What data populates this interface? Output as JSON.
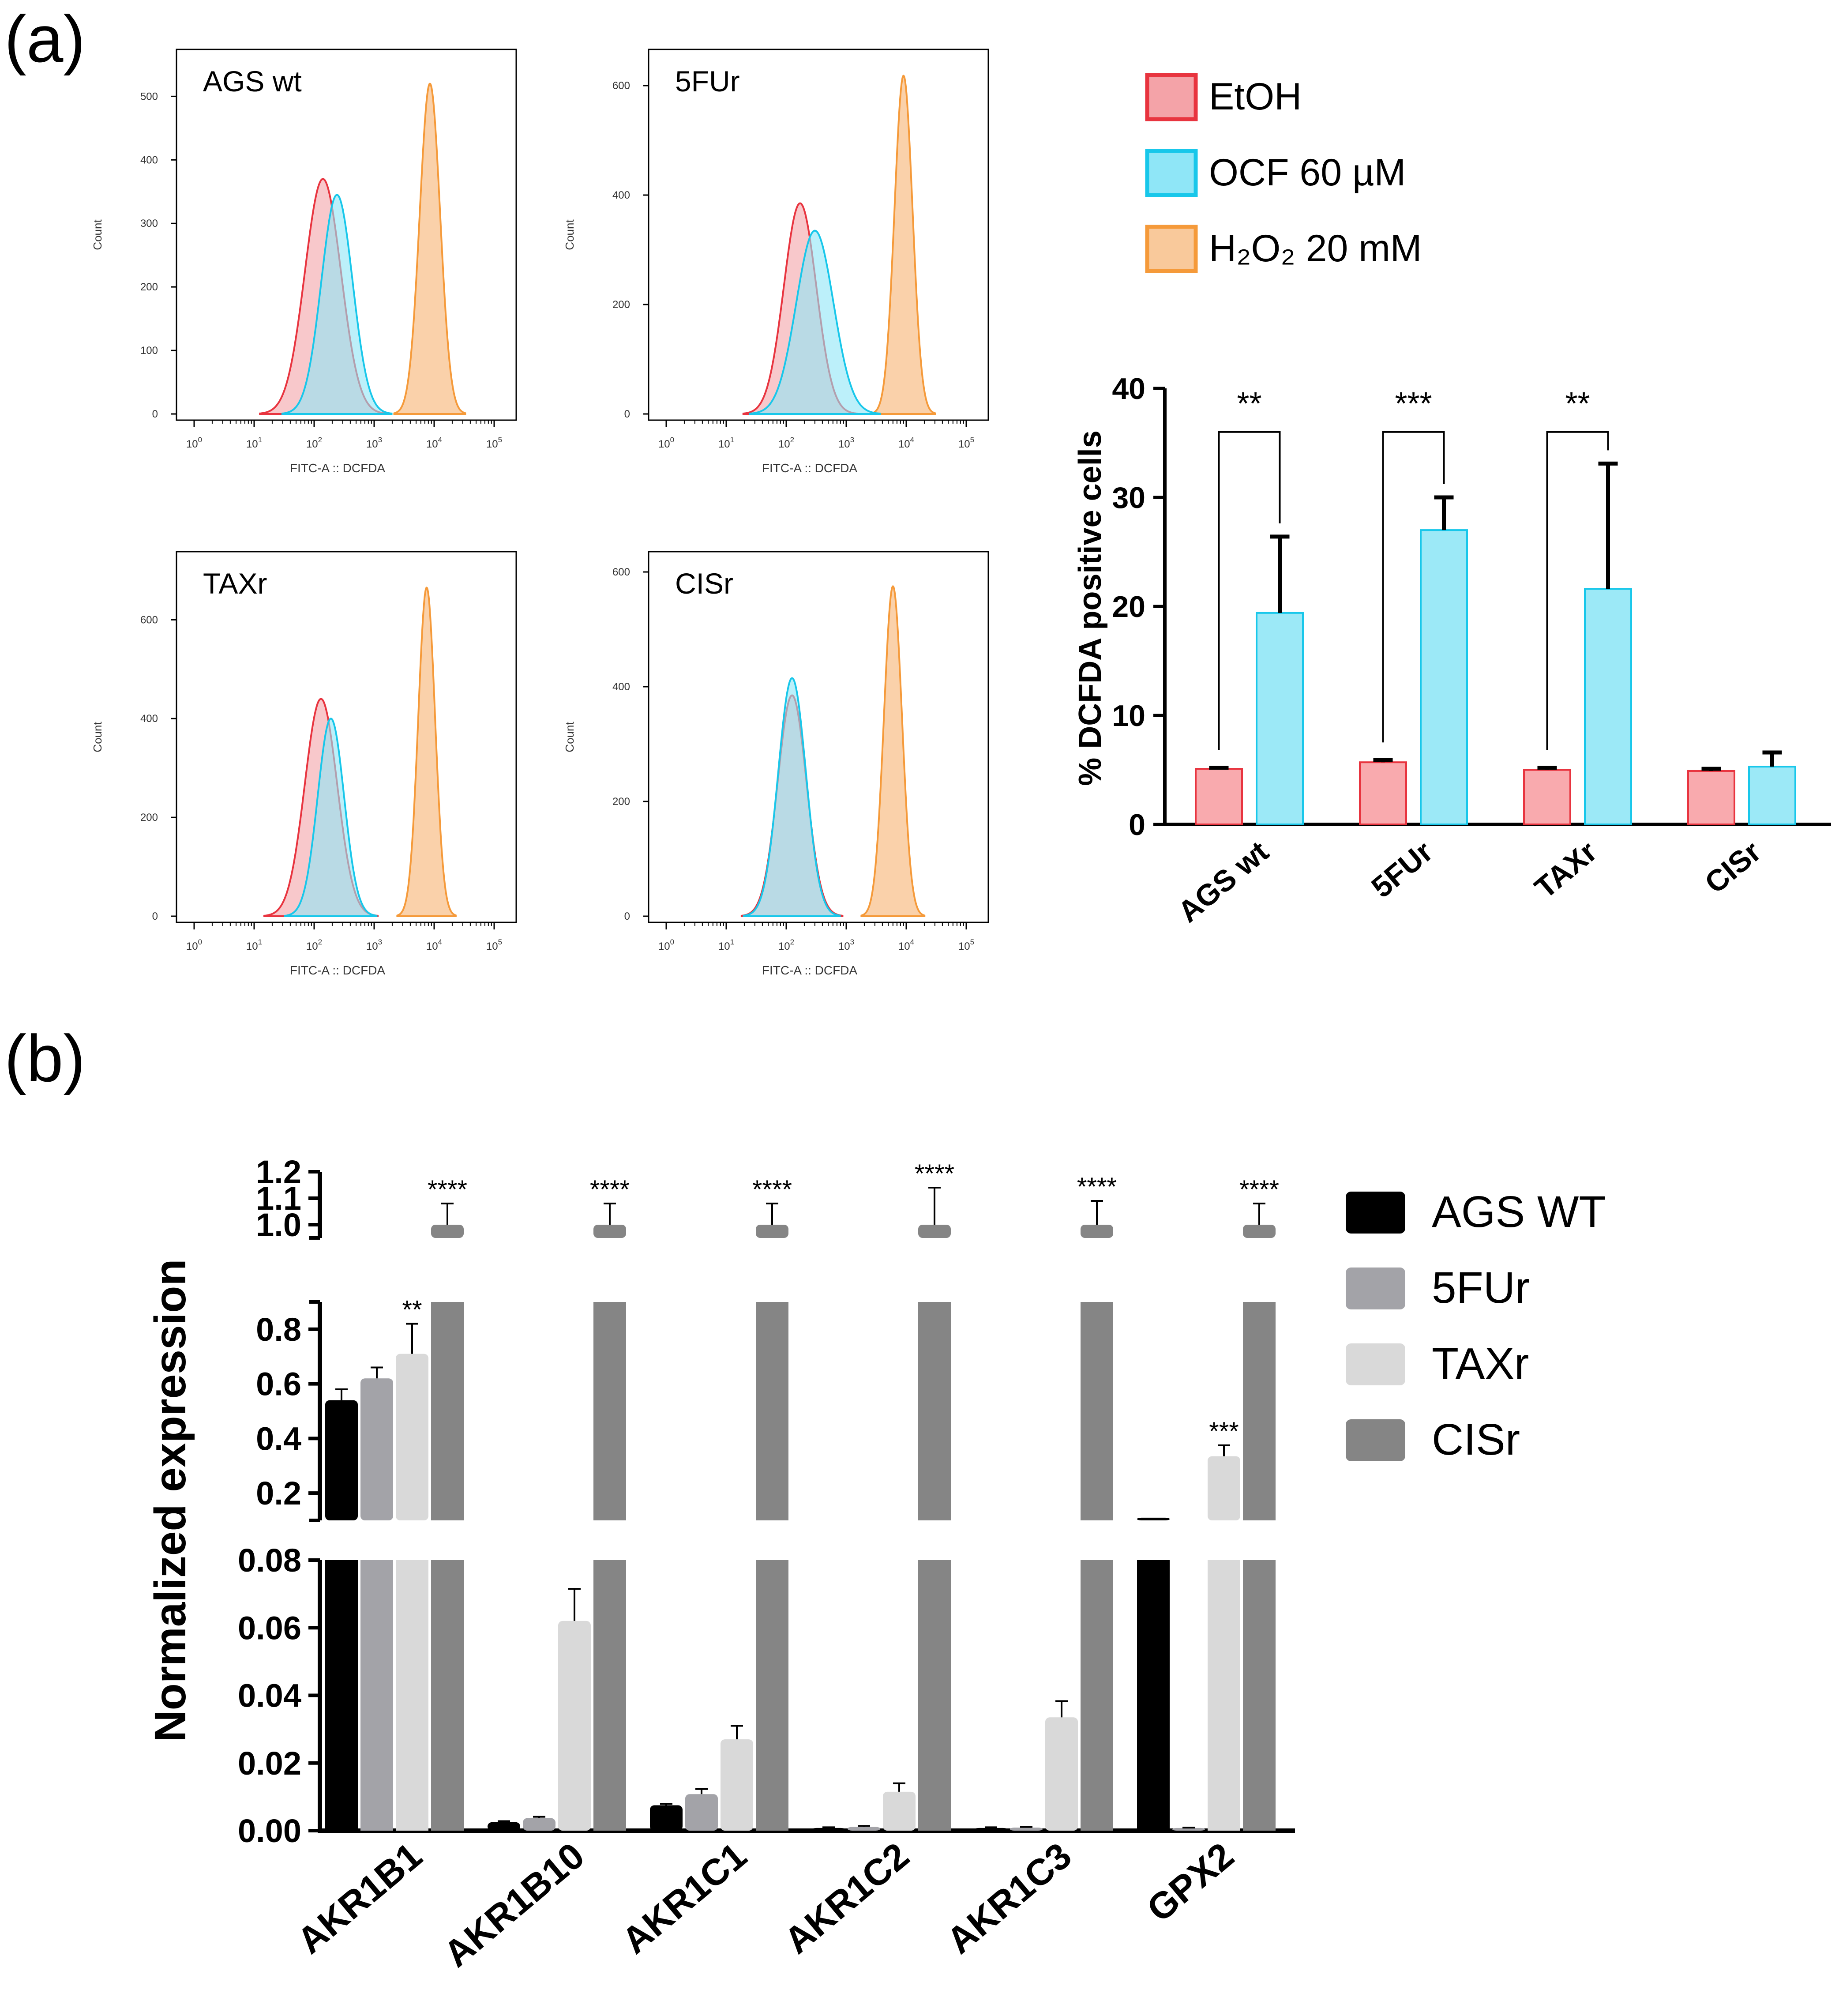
{
  "panel_labels": {
    "a": "(a)",
    "b": "(b)"
  },
  "histogram_axis": {
    "xlabel": "FITC-A :: DCFDA",
    "ylabel": "Count",
    "xticks": [
      "10^0",
      "10^1",
      "10^2",
      "10^3",
      "10^4",
      "10^5"
    ]
  },
  "legend_a": [
    {
      "label": "EtOH",
      "color": "#f4a3a8",
      "edge": "#e8343f"
    },
    {
      "label": "OCF 60 µM",
      "color": "#8fe6f7",
      "edge": "#18c7ea"
    },
    {
      "label": "H₂O₂ 20 mM",
      "color": "#f9c99b",
      "edge": "#f59a3a"
    }
  ],
  "legend_b": [
    {
      "label": "AGS WT",
      "color": "#000000"
    },
    {
      "label": "5FUr",
      "color": "#a3a3a8"
    },
    {
      "label": "TAXr",
      "color": "#d9d9d9"
    },
    {
      "label": "CISr",
      "color": "#858585"
    }
  ],
  "chart_data": [
    {
      "type": "histogram",
      "title": "AGS wt",
      "xlabel": "FITC-A :: DCFDA",
      "ylabel": "Count",
      "xscale": "log",
      "xlim": [
        1,
        100000
      ],
      "ylim": [
        0,
        560
      ],
      "yticks": [
        0,
        100,
        200,
        300,
        400,
        500
      ],
      "series": [
        {
          "name": "EtOH",
          "peak_x": 140,
          "peak_count": 370,
          "spread_decades": 0.3
        },
        {
          "name": "OCF 60 µM",
          "peak_x": 240,
          "peak_count": 345,
          "spread_decades": 0.26
        },
        {
          "name": "H₂O₂ 20 mM",
          "peak_x": 8500,
          "peak_count": 520,
          "spread_decades": 0.17
        }
      ]
    },
    {
      "type": "histogram",
      "title": "5FUr",
      "xlabel": "FITC-A :: DCFDA",
      "ylabel": "Count",
      "xscale": "log",
      "xlim": [
        1,
        100000
      ],
      "ylim": [
        0,
        650
      ],
      "yticks": [
        0,
        200,
        400,
        600
      ],
      "series": [
        {
          "name": "EtOH",
          "peak_x": 170,
          "peak_count": 385,
          "spread_decades": 0.27
        },
        {
          "name": "OCF 60 µM",
          "peak_x": 300,
          "peak_count": 335,
          "spread_decades": 0.31
        },
        {
          "name": "H₂O₂ 20 mM",
          "peak_x": 9000,
          "peak_count": 618,
          "spread_decades": 0.15
        }
      ]
    },
    {
      "type": "histogram",
      "title": "TAXr",
      "xlabel": "FITC-A :: DCFDA",
      "ylabel": "Count",
      "xscale": "log",
      "xlim": [
        1,
        100000
      ],
      "ylim": [
        0,
        720
      ],
      "yticks": [
        0,
        200,
        400,
        600
      ],
      "series": [
        {
          "name": "EtOH",
          "peak_x": 130,
          "peak_count": 440,
          "spread_decades": 0.27
        },
        {
          "name": "OCF 60 µM",
          "peak_x": 190,
          "peak_count": 400,
          "spread_decades": 0.22
        },
        {
          "name": "H₂O₂ 20 mM",
          "peak_x": 7500,
          "peak_count": 665,
          "spread_decades": 0.14
        }
      ]
    },
    {
      "type": "histogram",
      "title": "CISr",
      "xlabel": "FITC-A :: DCFDA",
      "ylabel": "Count",
      "xscale": "log",
      "xlim": [
        1,
        100000
      ],
      "ylim": [
        0,
        620
      ],
      "yticks": [
        0,
        200,
        400,
        600
      ],
      "series": [
        {
          "name": "EtOH",
          "peak_x": 125,
          "peak_count": 385,
          "spread_decades": 0.24
        },
        {
          "name": "OCF 60 µM",
          "peak_x": 125,
          "peak_count": 415,
          "spread_decades": 0.23
        },
        {
          "name": "H₂O₂ 20 mM",
          "peak_x": 6000,
          "peak_count": 575,
          "spread_decades": 0.15
        }
      ]
    },
    {
      "type": "bar",
      "title": "",
      "xlabel": "",
      "ylabel": "% DCFDA positive cells",
      "ylim": [
        0,
        40
      ],
      "yticks": [
        0,
        10,
        20,
        30,
        40
      ],
      "categories": [
        "AGS wt",
        "5FUr",
        "TAXr",
        "CISr"
      ],
      "series": [
        {
          "name": "EtOH",
          "values": [
            5.1,
            5.7,
            5.0,
            4.9
          ],
          "errors": [
            0.1,
            0.2,
            0.2,
            0.2
          ]
        },
        {
          "name": "OCF 60 µM",
          "values": [
            19.4,
            27.0,
            21.6,
            5.3
          ],
          "errors": [
            7.0,
            3.0,
            11.5,
            1.3
          ]
        }
      ],
      "significance": [
        "**",
        "***",
        "**",
        ""
      ]
    },
    {
      "type": "bar",
      "title": "",
      "xlabel": "",
      "ylabel": "Normalized expression",
      "broken_axis": true,
      "segments": [
        {
          "range": [
            0.0,
            0.08
          ],
          "ticks": [
            "0.00",
            "0.02",
            "0.04",
            "0.06",
            "0.08"
          ]
        },
        {
          "range": [
            0.1,
            0.9
          ],
          "ticks": [
            "0.2",
            "0.4",
            "0.6",
            "0.8"
          ]
        },
        {
          "range": [
            0.95,
            1.2
          ],
          "ticks": [
            "1.0",
            "1.1",
            "1.2"
          ]
        }
      ],
      "categories": [
        "AKR1B1",
        "AKR1B10",
        "AKR1C1",
        "AKR1C2",
        "AKR1C3",
        "GPX2"
      ],
      "series": [
        {
          "name": "AGS WT",
          "values": [
            0.54,
            0.0025,
            0.0075,
            0.0008,
            0.0008,
            0.11
          ],
          "errors": [
            0.04,
            0.0003,
            0.0004,
            0.0002,
            0.0002,
            0.0
          ]
        },
        {
          "name": "5FUr",
          "values": [
            0.62,
            0.0037,
            0.0108,
            0.0011,
            0.0009,
            0.0008
          ],
          "errors": [
            0.04,
            0.0004,
            0.0015,
            0.0003,
            0.0002,
            0.0001
          ]
        },
        {
          "name": "TAXr",
          "values": [
            0.71,
            0.062,
            0.027,
            0.0115,
            0.0335,
            0.335
          ],
          "errors": [
            0.11,
            0.0095,
            0.004,
            0.0025,
            0.0048,
            0.04
          ]
        },
        {
          "name": "CISr",
          "values": [
            1.0,
            1.0,
            1.0,
            1.0,
            1.0,
            1.0
          ],
          "errors": [
            0.08,
            0.08,
            0.08,
            0.14,
            0.09,
            0.08
          ]
        }
      ],
      "annotations": [
        {
          "category": "AKR1B1",
          "series": "TAXr",
          "text": "**"
        },
        {
          "category": "AKR1B1",
          "series": "CISr",
          "text": "****"
        },
        {
          "category": "AKR1B10",
          "series": "CISr",
          "text": "****"
        },
        {
          "category": "AKR1C1",
          "series": "CISr",
          "text": "****"
        },
        {
          "category": "AKR1C2",
          "series": "CISr",
          "text": "****"
        },
        {
          "category": "AKR1C3",
          "series": "CISr",
          "text": "****"
        },
        {
          "category": "GPX2",
          "series": "TAXr",
          "text": "***"
        },
        {
          "category": "GPX2",
          "series": "CISr",
          "text": "****"
        }
      ]
    }
  ]
}
